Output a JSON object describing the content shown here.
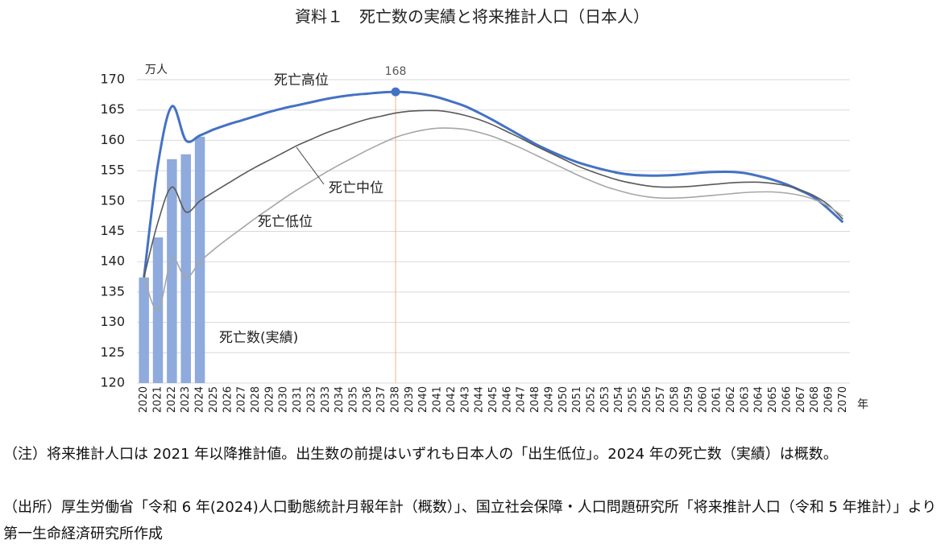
{
  "chart_data": {
    "type": "bar-line",
    "title": "資料１　死亡数の実績と将来推計人口（日本人）",
    "y_axis_label": "万人",
    "x_axis_label": "年",
    "categories": [
      "2020",
      "2021",
      "2022",
      "2023",
      "2024",
      "2025",
      "2026",
      "2027",
      "2028",
      "2029",
      "2030",
      "2031",
      "2032",
      "2033",
      "2034",
      "2035",
      "2036",
      "2037",
      "2038",
      "2039",
      "2040",
      "2041",
      "2042",
      "2043",
      "2044",
      "2045",
      "2046",
      "2047",
      "2048",
      "2049",
      "2050",
      "2051",
      "2052",
      "2053",
      "2054",
      "2055",
      "2056",
      "2057",
      "2058",
      "2059",
      "2060",
      "2061",
      "2062",
      "2063",
      "2064",
      "2065",
      "2066",
      "2067",
      "2068",
      "2069",
      "2070"
    ],
    "series": [
      {
        "name": "死亡高位",
        "type": "line",
        "color": "#4472c4",
        "values": [
          137.4,
          156.0,
          165.6,
          160.0,
          160.8,
          161.8,
          162.6,
          163.3,
          164.0,
          164.7,
          165.3,
          165.8,
          166.3,
          166.8,
          167.2,
          167.5,
          167.7,
          167.9,
          168.0,
          167.9,
          167.6,
          167.1,
          166.4,
          165.6,
          164.5,
          163.3,
          162.0,
          160.7,
          159.4,
          158.3,
          157.3,
          156.4,
          155.7,
          155.1,
          154.6,
          154.3,
          154.2,
          154.2,
          154.3,
          154.5,
          154.7,
          154.8,
          154.8,
          154.6,
          154.1,
          153.5,
          152.7,
          151.7,
          150.5,
          148.6,
          146.5
        ],
        "value_labels": [
          null,
          null,
          null,
          null,
          null,
          null,
          null,
          null,
          null,
          null,
          null,
          null,
          null,
          null,
          null,
          null,
          null,
          null,
          "168",
          null,
          null,
          null,
          null,
          null,
          null,
          null,
          null,
          null,
          null,
          null,
          null,
          null,
          null,
          null,
          null,
          null,
          null,
          null,
          null,
          null,
          null,
          null,
          null,
          null,
          null,
          null,
          null,
          null,
          null,
          null,
          null
        ]
      },
      {
        "name": "死亡中位",
        "type": "line",
        "color": "#595959",
        "values": [
          137.4,
          146.5,
          152.3,
          148.2,
          150.0,
          151.5,
          152.9,
          154.3,
          155.6,
          156.8,
          158.0,
          159.2,
          160.2,
          161.2,
          162.0,
          162.8,
          163.5,
          164.0,
          164.5,
          164.8,
          164.9,
          164.9,
          164.6,
          164.1,
          163.4,
          162.5,
          161.4,
          160.3,
          159.1,
          158.0,
          156.9,
          155.8,
          154.9,
          154.1,
          153.4,
          152.9,
          152.5,
          152.3,
          152.3,
          152.4,
          152.6,
          152.8,
          153.0,
          153.1,
          153.1,
          152.9,
          152.5,
          151.8,
          150.8,
          149.3,
          147.0
        ]
      },
      {
        "name": "死亡低位",
        "type": "line",
        "color": "#a6a6a6",
        "values": [
          137.4,
          132.0,
          140.4,
          137.3,
          140.0,
          142.0,
          143.8,
          145.5,
          147.2,
          148.8,
          150.4,
          151.9,
          153.3,
          154.7,
          156.0,
          157.2,
          158.4,
          159.5,
          160.5,
          161.2,
          161.7,
          162.0,
          162.0,
          161.8,
          161.3,
          160.6,
          159.7,
          158.7,
          157.6,
          156.5,
          155.4,
          154.3,
          153.3,
          152.4,
          151.7,
          151.1,
          150.7,
          150.5,
          150.5,
          150.6,
          150.8,
          151.0,
          151.2,
          151.4,
          151.5,
          151.5,
          151.3,
          150.9,
          150.2,
          149.1,
          147.5
        ]
      },
      {
        "name": "死亡数(実績)",
        "type": "bar",
        "color": "#8faadc",
        "values": [
          137.4,
          144.0,
          156.9,
          157.7,
          160.6,
          null,
          null,
          null,
          null,
          null,
          null,
          null,
          null,
          null,
          null,
          null,
          null,
          null,
          null,
          null,
          null,
          null,
          null,
          null,
          null,
          null,
          null,
          null,
          null,
          null,
          null,
          null,
          null,
          null,
          null,
          null,
          null,
          null,
          null,
          null,
          null,
          null,
          null,
          null,
          null,
          null,
          null,
          null,
          null,
          null,
          null
        ]
      }
    ],
    "ylim": [
      120,
      170
    ],
    "yticks": [
      120,
      125,
      130,
      135,
      140,
      145,
      150,
      155,
      160,
      165,
      170
    ],
    "grid": true
  },
  "notes": [
    "（注）将来推計人口は 2021 年以降推計値。出生数の前提はいずれも日本人の「出生低位」。2024 年の死亡数（実績）は概数。",
    "（出所）厚生労働省「令和 6 年(2024)人口動態統計月報年計（概数）」、国立社会保障・人口問題研究所「将来推計人口（令和 5 年推計）」より第一生命経済研究所作成"
  ]
}
